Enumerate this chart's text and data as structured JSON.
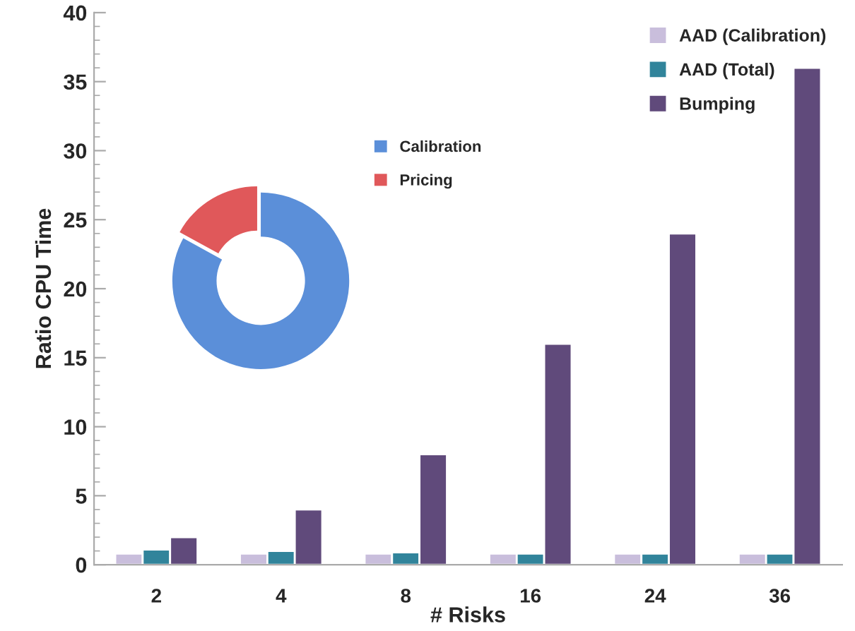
{
  "chart_data": [
    {
      "type": "bar",
      "xlabel": "# Risks",
      "ylabel": "Ratio CPU Time",
      "categories": [
        "2",
        "4",
        "8",
        "16",
        "24",
        "36"
      ],
      "series": [
        {
          "name": "AAD (Calibration)",
          "color": "#c9bedc",
          "values": [
            0.8,
            0.8,
            0.8,
            0.8,
            0.8,
            0.8
          ]
        },
        {
          "name": "AAD (Total)",
          "color": "#31849b",
          "values": [
            1.1,
            1.0,
            0.9,
            0.8,
            0.8,
            0.8
          ]
        },
        {
          "name": "Bumping",
          "color": "#604a7b",
          "values": [
            2,
            4,
            8,
            16,
            24,
            36
          ]
        }
      ],
      "ylim": [
        0,
        40
      ],
      "yticks": [
        0,
        5,
        10,
        15,
        20,
        25,
        30,
        35,
        40
      ],
      "grid": false,
      "legend": "top right"
    },
    {
      "type": "donut",
      "categories": [
        "Calibration",
        "Pricing"
      ],
      "values": [
        83,
        17
      ],
      "colors": [
        "#5b8fd9",
        "#e0585a"
      ],
      "legend": "top right"
    }
  ]
}
